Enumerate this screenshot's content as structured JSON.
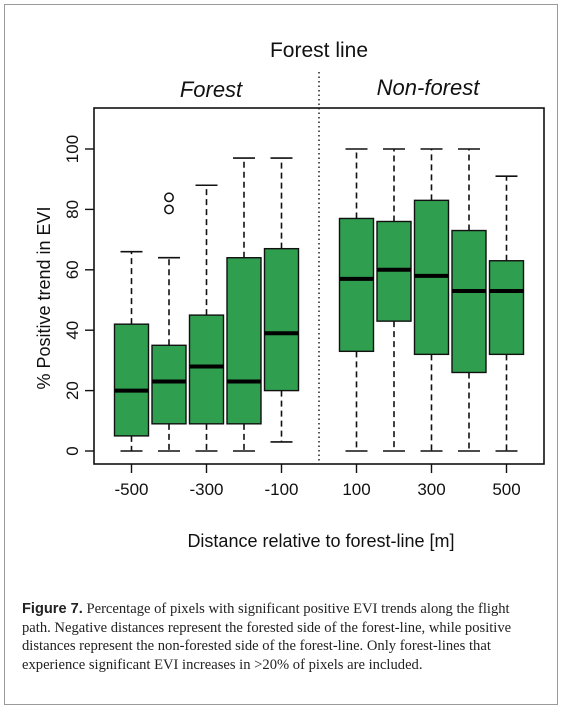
{
  "chart_data": {
    "type": "box",
    "title": "Forest line",
    "region_labels": [
      "Forest",
      "Non-forest"
    ],
    "xlabel": "Distance relative to forest-line [m]",
    "ylabel": "% Positive trend in EVI",
    "xlim": [
      -600,
      600
    ],
    "ylim": [
      0,
      100
    ],
    "x_ticks": [
      -500,
      -300,
      -100,
      100,
      300,
      500
    ],
    "y_ticks": [
      0,
      20,
      40,
      60,
      80,
      100
    ],
    "divider_x": 0,
    "box_color": "#2f9e4f",
    "boxes": [
      {
        "x": -500,
        "min": 0,
        "q1": 5,
        "median": 20,
        "q3": 42,
        "max": 66,
        "outliers": []
      },
      {
        "x": -400,
        "min": 0,
        "q1": 9,
        "median": 23,
        "q3": 35,
        "max": 64,
        "outliers": [
          80,
          84
        ]
      },
      {
        "x": -300,
        "min": 0,
        "q1": 9,
        "median": 28,
        "q3": 45,
        "max": 88,
        "outliers": []
      },
      {
        "x": -200,
        "min": 0,
        "q1": 9,
        "median": 23,
        "q3": 64,
        "max": 97,
        "outliers": []
      },
      {
        "x": -100,
        "min": 3,
        "q1": 20,
        "median": 39,
        "q3": 67,
        "max": 97,
        "outliers": []
      },
      {
        "x": 100,
        "min": 0,
        "q1": 33,
        "median": 57,
        "q3": 77,
        "max": 100,
        "outliers": []
      },
      {
        "x": 200,
        "min": 0,
        "q1": 43,
        "median": 60,
        "q3": 76,
        "max": 100,
        "outliers": []
      },
      {
        "x": 300,
        "min": 0,
        "q1": 32,
        "median": 58,
        "q3": 83,
        "max": 100,
        "outliers": []
      },
      {
        "x": 400,
        "min": 0,
        "q1": 26,
        "median": 53,
        "q3": 73,
        "max": 100,
        "outliers": []
      },
      {
        "x": 500,
        "min": 0,
        "q1": 32,
        "median": 53,
        "q3": 63,
        "max": 91,
        "outliers": []
      }
    ]
  },
  "caption": {
    "label": "Figure 7.",
    "text": " Percentage of pixels with significant positive EVI trends along the flight path. Negative distances represent the forested side of the forest-line, while positive distances represent the non-forested side of the forest-line. Only forest-lines that experience significant EVI increases in >20% of pixels are included."
  }
}
